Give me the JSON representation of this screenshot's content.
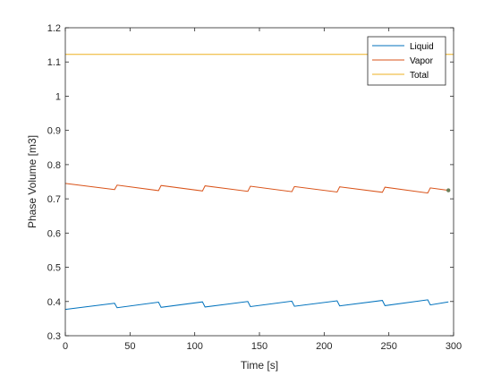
{
  "chart_data": {
    "type": "line",
    "xlabel": "Time [s]",
    "ylabel": "Phase Volume [m3]",
    "xlim": [
      0,
      300
    ],
    "ylim": [
      0.3,
      1.2
    ],
    "xticks": [
      0,
      50,
      100,
      150,
      200,
      250,
      300
    ],
    "xtick_labels": [
      "0",
      "50",
      "100",
      "150",
      "200",
      "250",
      "300"
    ],
    "yticks": [
      0.3,
      0.4,
      0.5,
      0.6,
      0.7,
      0.8,
      0.9,
      1.0,
      1.1,
      1.2
    ],
    "ytick_labels": [
      "0.3",
      "0.4",
      "0.5",
      "0.6",
      "0.7",
      "0.8",
      "0.9",
      "1",
      "1.1",
      "1.2"
    ],
    "grid": false,
    "legend_position": "top-right",
    "series": [
      {
        "name": "Liquid",
        "color": "#0072BD",
        "x": [
          0,
          38,
          40,
          72,
          74,
          106,
          108,
          141,
          143,
          175,
          177,
          210,
          212,
          245,
          247,
          280,
          282,
          296
        ],
        "y": [
          0.377,
          0.395,
          0.382,
          0.398,
          0.383,
          0.399,
          0.384,
          0.4,
          0.385,
          0.401,
          0.386,
          0.402,
          0.387,
          0.403,
          0.388,
          0.405,
          0.39,
          0.399
        ]
      },
      {
        "name": "Vapor",
        "color": "#D95319",
        "x": [
          0,
          38,
          40,
          72,
          74,
          106,
          108,
          141,
          143,
          175,
          177,
          210,
          212,
          245,
          247,
          280,
          282,
          296
        ],
        "y": [
          0.745,
          0.727,
          0.74,
          0.724,
          0.739,
          0.723,
          0.738,
          0.722,
          0.737,
          0.721,
          0.736,
          0.72,
          0.735,
          0.719,
          0.734,
          0.717,
          0.732,
          0.725
        ]
      },
      {
        "name": "Total",
        "color": "#EDB120",
        "x": [
          0,
          300
        ],
        "y": [
          1.122,
          1.122
        ]
      }
    ],
    "markers": [
      {
        "x": 296,
        "y": 0.725,
        "color": "#6a7f5a"
      }
    ]
  }
}
